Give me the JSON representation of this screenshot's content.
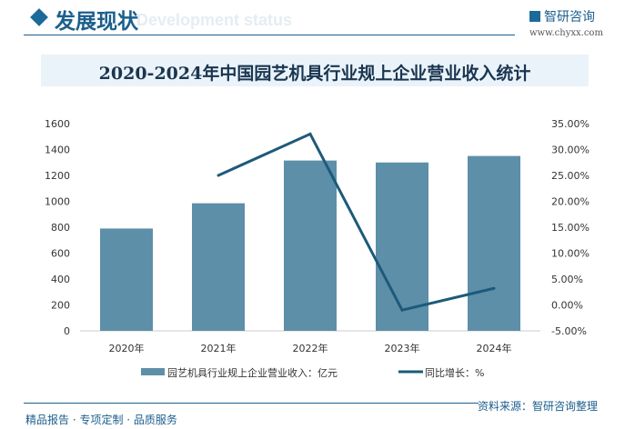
{
  "header": {
    "title": "发展现状",
    "subtitle": "Development status",
    "logo": "智研咨询",
    "url": "www.chyxx.com"
  },
  "footer": {
    "tagline": "精品报告 · 专项定制 · 品质服务",
    "source": "资料来源：智研咨询整理"
  },
  "colors": {
    "bar": "#5d8fa8",
    "line": "#1d5a7a"
  },
  "chart_data": {
    "type": "bar+line",
    "title": "2020-2024年中国园艺机具行业规上企业营业收入统计",
    "categories": [
      "2020年",
      "2021年",
      "2022年",
      "2023年",
      "2024年"
    ],
    "series": [
      {
        "name": "园艺机具行业规上企业营业收入：亿元",
        "type": "bar",
        "axis": "left",
        "values": [
          790,
          985,
          1315,
          1300,
          1350
        ]
      },
      {
        "name": "同比增长：%",
        "type": "line",
        "axis": "right",
        "values": [
          null,
          25.0,
          33.0,
          -1.0,
          3.2
        ]
      }
    ],
    "ylim_left": [
      0,
      1600
    ],
    "yticks_left": [
      "0",
      "200",
      "400",
      "600",
      "800",
      "1000",
      "1200",
      "1400",
      "1600"
    ],
    "ylim_right": [
      -5,
      35
    ],
    "yticks_right": [
      "-5.00%",
      "0.00%",
      "5.00%",
      "10.00%",
      "15.00%",
      "20.00%",
      "25.00%",
      "30.00%",
      "35.00%"
    ],
    "legend": "bottom",
    "grid": false
  }
}
